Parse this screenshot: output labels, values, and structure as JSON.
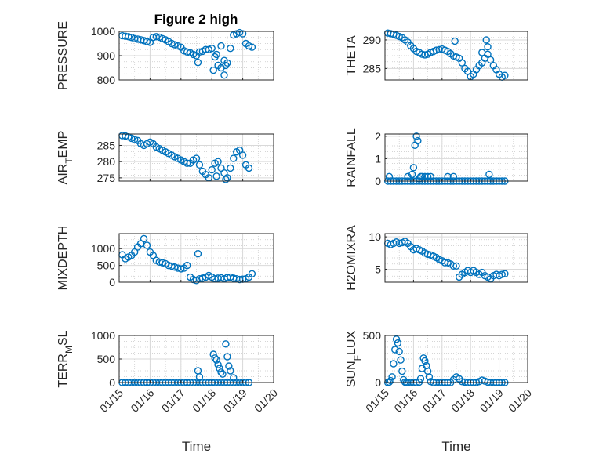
{
  "figure": {
    "title": "Figure 2 high",
    "marker_color": "#0072BD",
    "axis_color": "#262626",
    "grid_color": "#d9d9d9"
  },
  "chart_data": [
    {
      "type": "scatter",
      "ylabel": "PRESSURE",
      "ylabel_sub": "",
      "ylabel_tail": "",
      "ylim": [
        800,
        1000
      ],
      "yticks": [
        800,
        900,
        1000
      ],
      "ytick_labels": [
        "800",
        "900",
        "1000"
      ],
      "xlim": [
        0,
        5
      ],
      "xticks": [
        0,
        1,
        2,
        3,
        4,
        5
      ],
      "xtick_labels": [
        "01/15",
        "01/16",
        "01/17",
        "01/18",
        "01/19",
        "01/20"
      ],
      "show_xticklabels": false,
      "xlabel": "",
      "grid": true,
      "x": [
        0.1,
        0.2,
        0.3,
        0.4,
        0.5,
        0.6,
        0.7,
        0.8,
        0.9,
        1.0,
        1.1,
        1.2,
        1.3,
        1.4,
        1.5,
        1.6,
        1.7,
        1.8,
        1.9,
        2.0,
        2.1,
        2.2,
        2.3,
        2.4,
        2.5,
        2.6,
        2.7,
        2.8,
        2.9,
        3.0,
        3.1,
        3.2,
        3.3,
        3.4,
        3.5,
        3.6,
        3.7,
        3.8,
        3.9,
        4.0,
        4.1,
        4.2,
        4.3,
        2.55,
        3.05,
        3.15,
        3.4,
        3.45,
        3.3
      ],
      "y": [
        982,
        980,
        978,
        975,
        970,
        968,
        965,
        962,
        958,
        955,
        975,
        978,
        976,
        970,
        965,
        958,
        950,
        945,
        940,
        935,
        920,
        915,
        912,
        905,
        900,
        915,
        918,
        925,
        925,
        930,
        895,
        860,
        850,
        880,
        870,
        930,
        985,
        990,
        995,
        990,
        950,
        940,
        935,
        872,
        840,
        905,
        820,
        860,
        940
      ]
    },
    {
      "type": "scatter",
      "ylabel": "THETA",
      "ylabel_sub": "",
      "ylabel_tail": "",
      "ylim": [
        283,
        291.5
      ],
      "yticks": [
        285,
        290
      ],
      "ytick_labels": [
        "285",
        "290"
      ],
      "xlim": [
        0,
        5
      ],
      "xticks": [
        0,
        1,
        2,
        3,
        4,
        5
      ],
      "xtick_labels": [
        "01/15",
        "01/16",
        "01/17",
        "01/18",
        "01/19",
        "01/20"
      ],
      "show_xticklabels": false,
      "xlabel": "",
      "grid": true,
      "x": [
        0.1,
        0.2,
        0.3,
        0.4,
        0.5,
        0.6,
        0.7,
        0.8,
        0.9,
        1.0,
        1.1,
        1.2,
        1.3,
        1.4,
        1.5,
        1.6,
        1.7,
        1.8,
        1.9,
        2.0,
        2.1,
        2.2,
        2.3,
        2.4,
        2.5,
        2.6,
        2.7,
        2.8,
        2.9,
        3.0,
        3.1,
        3.2,
        3.3,
        3.4,
        3.5,
        3.6,
        3.7,
        3.8,
        3.9,
        4.0,
        4.1,
        4.2,
        2.45,
        3.55,
        3.6,
        3.4
      ],
      "y": [
        291.2,
        291.1,
        291.0,
        290.8,
        290.6,
        290.4,
        290.0,
        289.6,
        289.0,
        288.5,
        288.0,
        287.8,
        287.5,
        287.4,
        287.5,
        287.8,
        288.0,
        288.2,
        288.3,
        288.4,
        288.2,
        288.0,
        287.6,
        287.2,
        287.0,
        286.8,
        286.0,
        285.0,
        284.5,
        283.6,
        284.0,
        284.8,
        285.5,
        286.0,
        286.8,
        287.5,
        286.5,
        285.5,
        284.8,
        284.0,
        283.5,
        283.8,
        289.8,
        290.0,
        288.8,
        287.8
      ]
    },
    {
      "type": "scatter",
      "ylabel": "AIR",
      "ylabel_sub": "T",
      "ylabel_tail": "EMP",
      "ylim": [
        274,
        288.5
      ],
      "yticks": [
        275,
        280,
        285
      ],
      "ytick_labels": [
        "275",
        "280",
        "285"
      ],
      "xlim": [
        0,
        5
      ],
      "xticks": [
        0,
        1,
        2,
        3,
        4,
        5
      ],
      "xtick_labels": [
        "01/15",
        "01/16",
        "01/17",
        "01/18",
        "01/19",
        "01/20"
      ],
      "show_xticklabels": false,
      "xlabel": "",
      "grid": true,
      "x": [
        0.1,
        0.2,
        0.3,
        0.4,
        0.5,
        0.6,
        0.7,
        0.8,
        0.9,
        1.0,
        1.1,
        1.2,
        1.3,
        1.4,
        1.5,
        1.6,
        1.7,
        1.8,
        1.9,
        2.0,
        2.1,
        2.2,
        2.3,
        2.4,
        2.5,
        2.6,
        2.7,
        2.8,
        2.9,
        3.0,
        3.1,
        3.2,
        3.3,
        3.4,
        3.5,
        3.6,
        3.7,
        3.8,
        3.9,
        4.0,
        4.1,
        4.2,
        3.15,
        3.45
      ],
      "y": [
        288.0,
        287.9,
        287.6,
        287.2,
        286.8,
        286.5,
        285.5,
        285.0,
        285.5,
        286.0,
        285.5,
        284.5,
        284.0,
        283.5,
        283.0,
        282.5,
        282.0,
        281.5,
        281.0,
        280.5,
        280.0,
        279.5,
        279.5,
        280.5,
        281.0,
        279.0,
        277.0,
        276.0,
        275.0,
        277.5,
        279.5,
        280.0,
        278.0,
        276.5,
        275.0,
        278.0,
        281.0,
        283.0,
        283.5,
        282.0,
        279.0,
        278.0,
        275.5,
        274.5
      ]
    },
    {
      "type": "scatter",
      "ylabel": "RAINFALL",
      "ylabel_sub": "",
      "ylabel_tail": "",
      "ylim": [
        0,
        2.1
      ],
      "yticks": [
        0,
        1,
        2
      ],
      "ytick_labels": [
        "0",
        "1",
        "2"
      ],
      "xlim": [
        0,
        5
      ],
      "xticks": [
        0,
        1,
        2,
        3,
        4,
        5
      ],
      "xtick_labels": [
        "01/15",
        "01/16",
        "01/17",
        "01/18",
        "01/19",
        "01/20"
      ],
      "show_xticklabels": false,
      "xlabel": "",
      "grid": true,
      "x": [
        0.1,
        0.2,
        0.3,
        0.4,
        0.5,
        0.6,
        0.7,
        0.8,
        0.9,
        1.0,
        1.1,
        1.2,
        1.3,
        1.4,
        1.5,
        1.6,
        1.7,
        1.8,
        1.9,
        2.0,
        2.1,
        2.2,
        2.3,
        2.4,
        2.5,
        2.6,
        2.7,
        2.8,
        2.9,
        3.0,
        3.1,
        3.2,
        3.3,
        3.4,
        3.5,
        3.6,
        3.7,
        3.8,
        3.9,
        4.0,
        4.1,
        4.2,
        0.15,
        0.8,
        0.95,
        1.0,
        1.05,
        1.1,
        1.15,
        1.2,
        1.25,
        1.3,
        1.4,
        1.5,
        1.6,
        2.2,
        2.4,
        3.65
      ],
      "y": [
        0,
        0,
        0,
        0,
        0,
        0,
        0,
        0,
        0,
        0,
        0,
        0,
        0,
        0,
        0,
        0,
        0,
        0,
        0,
        0,
        0,
        0,
        0,
        0,
        0,
        0,
        0,
        0,
        0,
        0,
        0,
        0,
        0,
        0,
        0,
        0,
        0,
        0,
        0,
        0,
        0,
        0,
        0.2,
        0.2,
        0.3,
        0.6,
        1.6,
        2.0,
        1.8,
        0.1,
        0.2,
        0.2,
        0.2,
        0.2,
        0.2,
        0.2,
        0.2,
        0.3
      ]
    },
    {
      "type": "scatter",
      "ylabel": "MIXDEPTH",
      "ylabel_sub": "",
      "ylabel_tail": "",
      "ylim": [
        0,
        1450
      ],
      "yticks": [
        0,
        500,
        1000
      ],
      "ytick_labels": [
        "0",
        "500",
        "1000"
      ],
      "xlim": [
        0,
        5
      ],
      "xticks": [
        0,
        1,
        2,
        3,
        4,
        5
      ],
      "xtick_labels": [
        "01/15",
        "01/16",
        "01/17",
        "01/18",
        "01/19",
        "01/20"
      ],
      "show_xticklabels": false,
      "xlabel": "",
      "grid": true,
      "x": [
        0.1,
        0.2,
        0.3,
        0.4,
        0.5,
        0.6,
        0.7,
        0.8,
        0.9,
        1.0,
        1.1,
        1.2,
        1.3,
        1.4,
        1.5,
        1.6,
        1.7,
        1.8,
        1.9,
        2.0,
        2.1,
        2.2,
        2.3,
        2.4,
        2.5,
        2.6,
        2.7,
        2.8,
        2.9,
        3.0,
        3.1,
        3.2,
        3.3,
        3.4,
        3.5,
        3.6,
        3.7,
        3.8,
        3.9,
        4.0,
        4.1,
        4.2,
        4.3,
        2.55
      ],
      "y": [
        820,
        700,
        750,
        800,
        900,
        1050,
        1150,
        1300,
        1100,
        900,
        800,
        650,
        600,
        580,
        550,
        500,
        480,
        450,
        420,
        400,
        420,
        500,
        150,
        80,
        50,
        100,
        120,
        150,
        200,
        150,
        100,
        120,
        130,
        100,
        140,
        150,
        120,
        100,
        80,
        90,
        100,
        150,
        250,
        850
      ]
    },
    {
      "type": "scatter",
      "ylabel": "H2OMIXRA",
      "ylabel_sub": "",
      "ylabel_tail": "",
      "ylim": [
        3,
        10.5
      ],
      "yticks": [
        5,
        10
      ],
      "ytick_labels": [
        "5",
        "10"
      ],
      "xlim": [
        0,
        5
      ],
      "xticks": [
        0,
        1,
        2,
        3,
        4,
        5
      ],
      "xtick_labels": [
        "01/15",
        "01/16",
        "01/17",
        "01/18",
        "01/19",
        "01/20"
      ],
      "show_xticklabels": false,
      "xlabel": "",
      "grid": true,
      "x": [
        0.1,
        0.2,
        0.3,
        0.4,
        0.5,
        0.6,
        0.7,
        0.8,
        0.9,
        1.0,
        1.1,
        1.2,
        1.3,
        1.4,
        1.5,
        1.6,
        1.7,
        1.8,
        1.9,
        2.0,
        2.1,
        2.2,
        2.3,
        2.4,
        2.5,
        2.6,
        2.7,
        2.8,
        2.9,
        3.0,
        3.1,
        3.2,
        3.3,
        3.4,
        3.5,
        3.6,
        3.7,
        3.8,
        3.9,
        4.0,
        4.1,
        4.2
      ],
      "y": [
        9.0,
        8.8,
        9.0,
        9.2,
        9.0,
        9.1,
        9.3,
        9.0,
        8.5,
        8.0,
        8.2,
        8.0,
        7.8,
        7.5,
        7.3,
        7.2,
        7.0,
        6.8,
        6.5,
        6.3,
        6.0,
        6.0,
        5.8,
        5.5,
        5.5,
        3.8,
        4.2,
        4.5,
        4.8,
        4.5,
        4.8,
        4.5,
        4.2,
        4.5,
        4.0,
        3.8,
        3.5,
        4.0,
        4.2,
        4.0,
        4.2,
        4.3
      ]
    },
    {
      "type": "scatter",
      "ylabel": "TERR",
      "ylabel_sub": "M",
      "ylabel_tail": "SL",
      "ylim": [
        0,
        1000
      ],
      "yticks": [
        0,
        500,
        1000
      ],
      "ytick_labels": [
        "0",
        "500",
        "1000"
      ],
      "xlim": [
        0,
        5
      ],
      "xticks": [
        0,
        1,
        2,
        3,
        4,
        5
      ],
      "xtick_labels": [
        "01/15",
        "01/16",
        "01/17",
        "01/18",
        "01/19",
        "01/20"
      ],
      "show_xticklabels": true,
      "xlabel": "Time",
      "grid": true,
      "x": [
        0.1,
        0.2,
        0.3,
        0.4,
        0.5,
        0.6,
        0.7,
        0.8,
        0.9,
        1.0,
        1.1,
        1.2,
        1.3,
        1.4,
        1.5,
        1.6,
        1.7,
        1.8,
        1.9,
        2.0,
        2.1,
        2.2,
        2.3,
        2.4,
        2.5,
        2.6,
        2.7,
        2.8,
        2.9,
        3.0,
        3.1,
        3.2,
        3.3,
        3.4,
        3.5,
        3.6,
        3.7,
        3.8,
        3.9,
        4.0,
        4.1,
        4.2,
        2.55,
        2.6,
        3.05,
        3.1,
        3.15,
        3.2,
        3.25,
        3.3,
        3.35,
        3.45,
        3.5,
        3.55,
        3.6,
        3.7
      ],
      "y": [
        0,
        0,
        0,
        0,
        0,
        0,
        0,
        0,
        0,
        0,
        0,
        0,
        0,
        0,
        0,
        0,
        0,
        0,
        0,
        0,
        0,
        0,
        0,
        0,
        0,
        0,
        0,
        0,
        0,
        0,
        0,
        0,
        0,
        0,
        0,
        0,
        0,
        0,
        0,
        0,
        0,
        0,
        250,
        120,
        600,
        520,
        480,
        380,
        300,
        220,
        180,
        820,
        550,
        350,
        250,
        100
      ]
    },
    {
      "type": "scatter",
      "ylabel": "SUN",
      "ylabel_sub": "F",
      "ylabel_tail": "LUX",
      "ylim": [
        0,
        500
      ],
      "yticks": [
        0,
        500
      ],
      "ytick_labels": [
        "0",
        "500"
      ],
      "xlim": [
        0,
        5
      ],
      "xticks": [
        0,
        1,
        2,
        3,
        4,
        5
      ],
      "xtick_labels": [
        "01/15",
        "01/16",
        "01/17",
        "01/18",
        "01/19",
        "01/20"
      ],
      "show_xticklabels": true,
      "xlabel": "Time",
      "grid": true,
      "x": [
        0.1,
        0.15,
        0.2,
        0.25,
        0.3,
        0.35,
        0.4,
        0.45,
        0.5,
        0.55,
        0.6,
        0.65,
        0.7,
        0.75,
        0.8,
        0.9,
        1.0,
        1.1,
        1.2,
        1.25,
        1.3,
        1.35,
        1.4,
        1.45,
        1.5,
        1.55,
        1.6,
        1.7,
        1.8,
        1.9,
        2.0,
        2.1,
        2.2,
        2.3,
        2.4,
        2.5,
        2.6,
        2.7,
        2.8,
        2.9,
        3.0,
        3.1,
        3.2,
        3.3,
        3.4,
        3.5,
        3.6,
        3.7,
        3.8,
        3.9,
        4.0,
        4.1,
        4.2
      ],
      "y": [
        0,
        5,
        20,
        60,
        200,
        350,
        460,
        420,
        330,
        240,
        120,
        30,
        5,
        0,
        0,
        0,
        0,
        0,
        5,
        40,
        150,
        260,
        230,
        180,
        120,
        60,
        10,
        0,
        0,
        0,
        0,
        0,
        0,
        0,
        30,
        60,
        40,
        10,
        5,
        0,
        0,
        0,
        0,
        10,
        25,
        15,
        5,
        0,
        0,
        0,
        0,
        0,
        0
      ]
    }
  ]
}
